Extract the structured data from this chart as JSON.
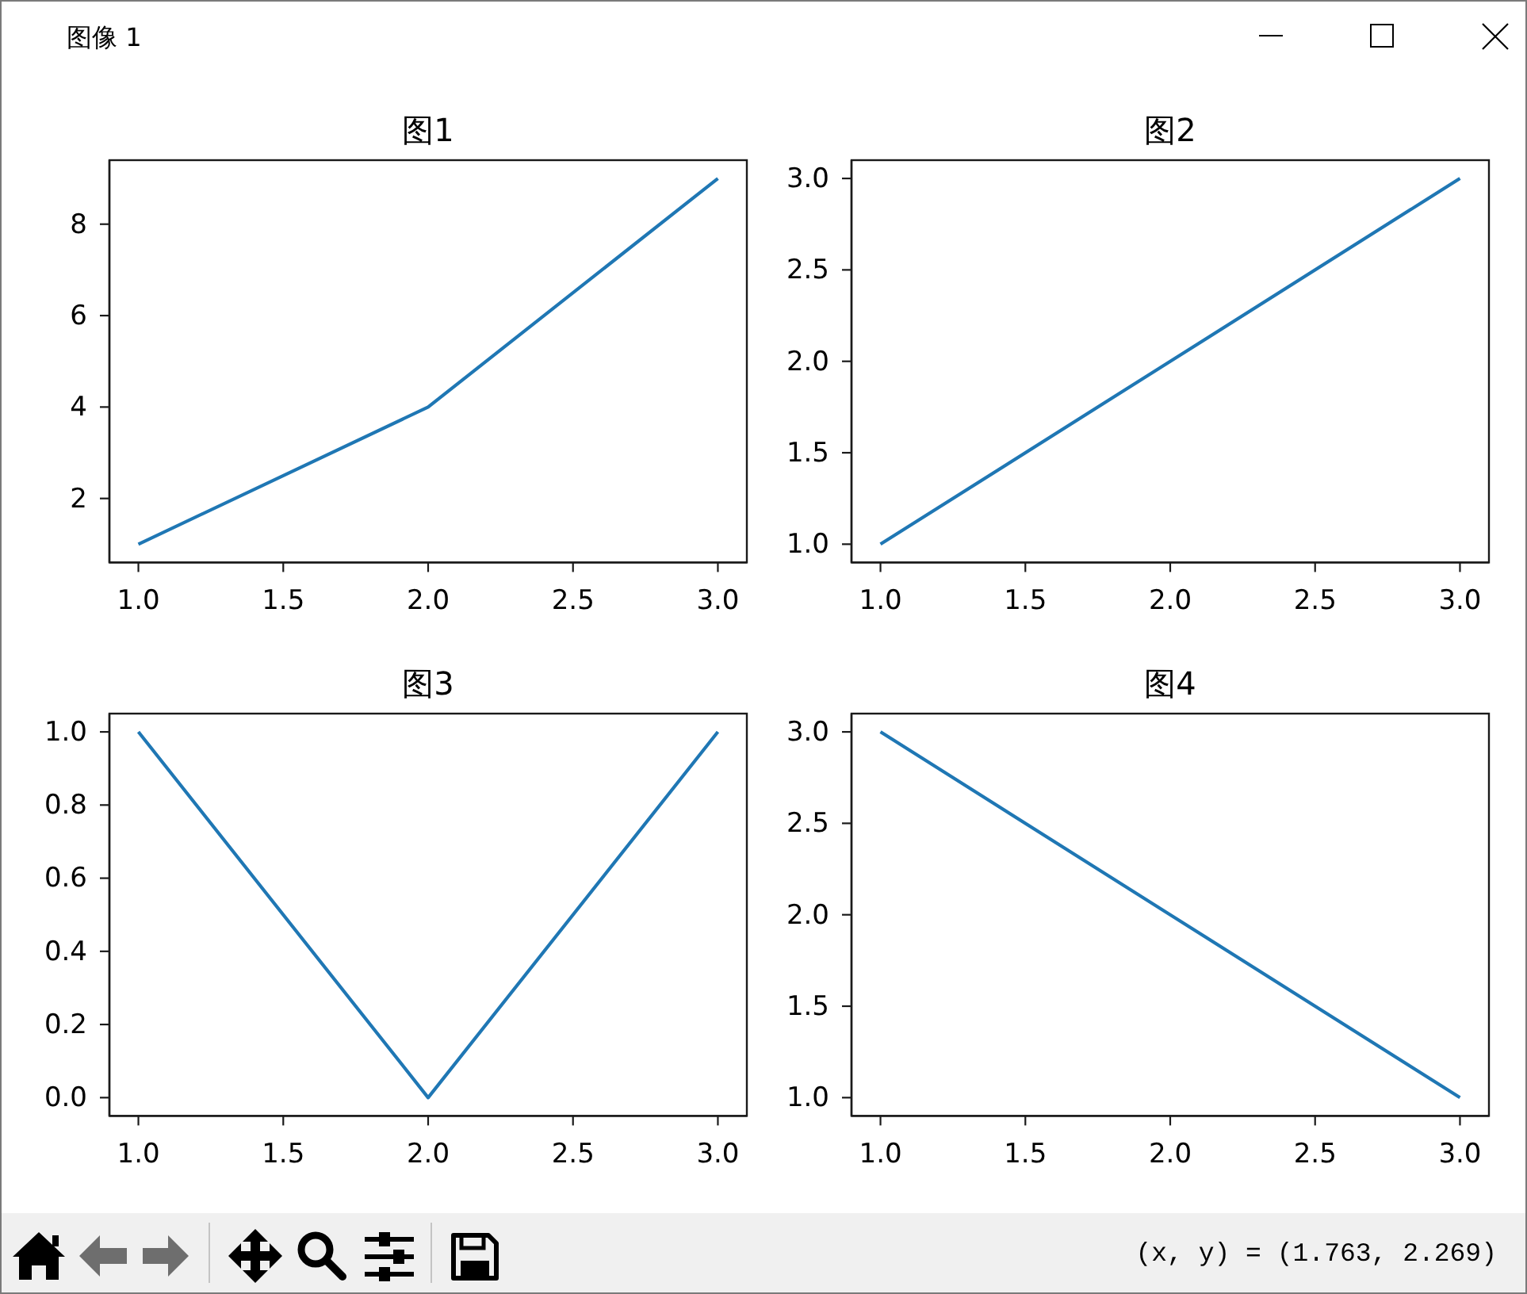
{
  "chart_data": [
    {
      "type": "other",
      "title": "图像 1",
      "annotations": [
        "(x, y) = (1.763, 2.269)"
      ]
    },
    {
      "type": "line",
      "title": "图1",
      "x": [
        1,
        2,
        3
      ],
      "values": [
        1,
        4,
        9
      ],
      "color": "#1f77b4",
      "xlim": [
        0.9,
        3.1
      ],
      "xticks": [
        {
          "value": 1,
          "label": "1.0"
        },
        {
          "value": 1.5,
          "label": "1.5"
        },
        {
          "value": 2,
          "label": "2.0"
        },
        {
          "value": 2.5,
          "label": "2.5"
        },
        {
          "value": 3,
          "label": "3.0"
        }
      ],
      "ylim": [
        0.6,
        9.4
      ],
      "yticks": [
        2,
        4,
        6,
        8
      ]
    },
    {
      "type": "line",
      "title": "图2",
      "x": [
        1,
        2,
        3
      ],
      "values": [
        1,
        2,
        3
      ],
      "color": "#1f77b4",
      "xlim": [
        0.9,
        3.1
      ],
      "xticks": [
        {
          "value": 1,
          "label": "1.0"
        },
        {
          "value": 1.5,
          "label": "1.5"
        },
        {
          "value": 2,
          "label": "2.0"
        },
        {
          "value": 2.5,
          "label": "2.5"
        },
        {
          "value": 3,
          "label": "3.0"
        }
      ],
      "ylim": [
        0.9,
        3.1
      ],
      "yticks": [
        {
          "value": 1,
          "label": "1.0"
        },
        1.5,
        {
          "value": 2,
          "label": "2.0"
        },
        2.5,
        {
          "value": 3,
          "label": "3.0"
        }
      ]
    },
    {
      "type": "line",
      "title": "图3",
      "x": [
        1,
        2,
        3
      ],
      "values": [
        1,
        0,
        1
      ],
      "color": "#1f77b4",
      "xlim": [
        0.9,
        3.1
      ],
      "xticks": [
        {
          "value": 1,
          "label": "1.0"
        },
        {
          "value": 1.5,
          "label": "1.5"
        },
        {
          "value": 2,
          "label": "2.0"
        },
        {
          "value": 2.5,
          "label": "2.5"
        },
        {
          "value": 3,
          "label": "3.0"
        }
      ],
      "ylim": [
        -0.05,
        1.05
      ],
      "yticks": [
        {
          "value": 0,
          "label": "0.0"
        },
        0.2,
        0.4,
        0.6,
        0.8,
        {
          "value": 1,
          "label": "1.0"
        }
      ]
    },
    {
      "type": "line",
      "title": "图4",
      "x": [
        1,
        2,
        3
      ],
      "values": [
        3,
        2,
        1
      ],
      "color": "#1f77b4",
      "xlim": [
        0.9,
        3.1
      ],
      "xticks": [
        {
          "value": 1,
          "label": "1.0"
        },
        {
          "value": 1.5,
          "label": "1.5"
        },
        {
          "value": 2,
          "label": "2.0"
        },
        {
          "value": 2.5,
          "label": "2.5"
        },
        {
          "value": 3,
          "label": "3.0"
        }
      ],
      "ylim": [
        0.9,
        3.1
      ],
      "yticks": [
        {
          "value": 1,
          "label": "1.0"
        },
        1.5,
        {
          "value": 2,
          "label": "2.0"
        },
        2.5,
        {
          "value": 3,
          "label": "3.0"
        }
      ]
    }
  ]
}
